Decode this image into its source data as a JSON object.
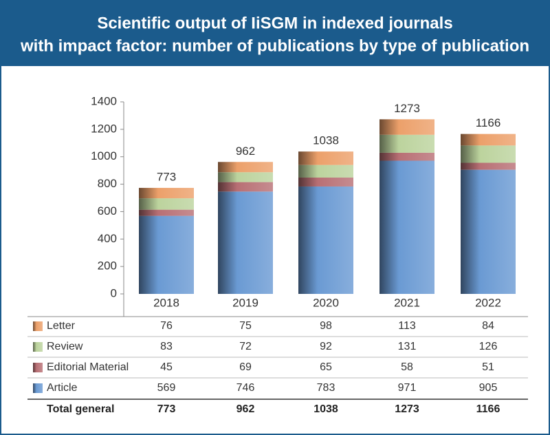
{
  "chart_data": {
    "type": "bar",
    "title": [
      "Scientific output of IiSGM in indexed journals",
      "with impact factor: number of publications by type of publication"
    ],
    "stacked": true,
    "categories": [
      "2018",
      "2019",
      "2020",
      "2021",
      "2022"
    ],
    "series": [
      {
        "name": "Article",
        "color": "#6a9ad3",
        "values": [
          569,
          746,
          783,
          971,
          905
        ]
      },
      {
        "name": "Editorial Material",
        "color": "#b86f74",
        "values": [
          45,
          69,
          65,
          58,
          51
        ]
      },
      {
        "name": "Review",
        "color": "#bcd39d",
        "values": [
          83,
          72,
          92,
          131,
          126
        ]
      },
      {
        "name": "Letter",
        "color": "#eca06a",
        "values": [
          76,
          75,
          98,
          113,
          84
        ]
      }
    ],
    "totals_label": "Total general",
    "totals": [
      773,
      962,
      1038,
      1273,
      1166
    ],
    "ylim": [
      0,
      1400
    ],
    "yticks": [
      0,
      200,
      400,
      600,
      800,
      1000,
      1200,
      1400
    ]
  }
}
